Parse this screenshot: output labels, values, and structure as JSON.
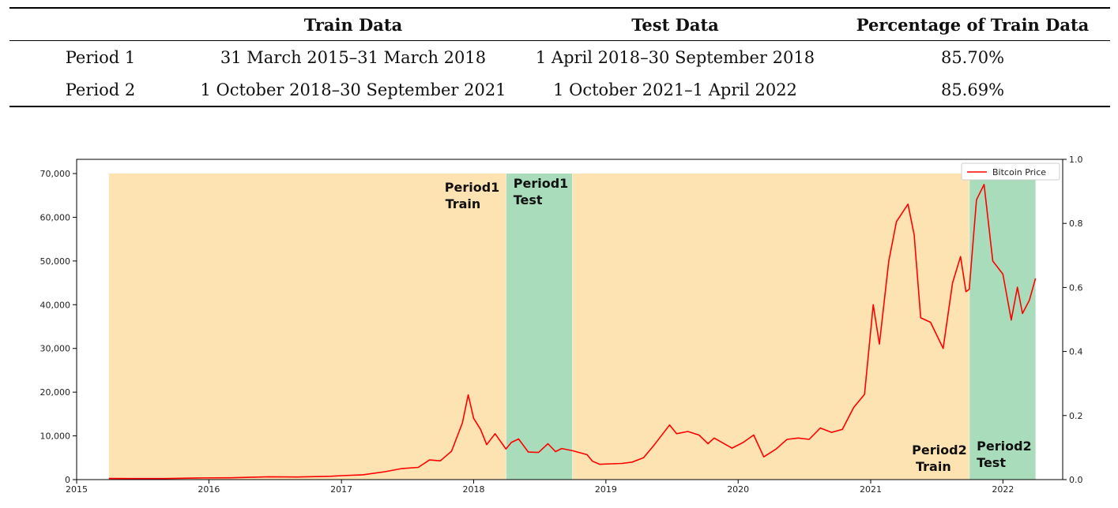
{
  "table": {
    "headers": [
      "",
      "Train Data",
      "Test Data",
      "Percentage of Train Data"
    ],
    "rows": [
      [
        "Period 1",
        "31 March 2015–31 March 2018",
        "1 April 2018–30 September 2018",
        "85.70%"
      ],
      [
        "Period 2",
        "1 October 2018–30 September 2021",
        "1 October 2021–1 April 2022",
        "85.69%"
      ]
    ]
  },
  "chart_data": {
    "type": "line",
    "x_axis": {
      "type": "date",
      "ticks": [
        "2015",
        "2016",
        "2017",
        "2018",
        "2019",
        "2020",
        "2021",
        "2022"
      ],
      "range": [
        "2015-01-01",
        "2022-06-15"
      ]
    },
    "y_axis_left": {
      "ylim": [
        0,
        70000
      ],
      "ticks": [
        "0",
        "10,000",
        "20,000",
        "30,000",
        "40,000",
        "50,000",
        "60,000",
        "70,000"
      ]
    },
    "y_axis_right": {
      "ylim": [
        0,
        1.0
      ],
      "ticks": [
        "0.0",
        "0.2",
        "0.4",
        "0.6",
        "0.8",
        "1.0"
      ]
    },
    "grid": false,
    "legend": {
      "placement": "top-right",
      "entries": [
        {
          "name": "Bitcoin Price",
          "color": "#ff0000"
        }
      ]
    },
    "regions": [
      {
        "line1": "Period1",
        "line2": "Train",
        "start": "2015-03-31",
        "end": "2018-03-31",
        "color": "#fde2b2"
      },
      {
        "line1": "Period1",
        "line2": "Test",
        "start": "2018-04-01",
        "end": "2018-09-30",
        "color": "#a9dcbb"
      },
      {
        "line1": "Period2",
        "line2": "Train",
        "start": "2018-10-01",
        "end": "2021-09-30",
        "color": "#fde2b2"
      },
      {
        "line1": "Period2",
        "line2": "Test",
        "start": "2021-10-01",
        "end": "2022-04-01",
        "color": "#a9dcbb"
      }
    ],
    "series": [
      {
        "name": "Bitcoin Price",
        "color": "#ff0000",
        "x": [
          "2015-03-31",
          "2015-06-01",
          "2015-09-01",
          "2015-12-01",
          "2016-03-01",
          "2016-06-15",
          "2016-09-01",
          "2016-12-01",
          "2017-01-01",
          "2017-03-01",
          "2017-05-01",
          "2017-06-15",
          "2017-08-01",
          "2017-09-01",
          "2017-10-01",
          "2017-11-01",
          "2017-12-01",
          "2017-12-17",
          "2018-01-01",
          "2018-01-20",
          "2018-02-06",
          "2018-03-01",
          "2018-03-31",
          "2018-04-15",
          "2018-05-05",
          "2018-06-01",
          "2018-06-29",
          "2018-07-25",
          "2018-08-15",
          "2018-09-01",
          "2018-10-01",
          "2018-11-10",
          "2018-11-25",
          "2018-12-15",
          "2019-01-15",
          "2019-02-15",
          "2019-03-15",
          "2019-04-15",
          "2019-05-15",
          "2019-06-26",
          "2019-07-15",
          "2019-08-15",
          "2019-09-15",
          "2019-10-10",
          "2019-10-27",
          "2019-12-15",
          "2020-01-15",
          "2020-02-13",
          "2020-03-12",
          "2020-04-15",
          "2020-05-15",
          "2020-06-15",
          "2020-07-15",
          "2020-08-15",
          "2020-09-15",
          "2020-10-15",
          "2020-11-15",
          "2020-12-15",
          "2021-01-08",
          "2021-01-25",
          "2021-02-20",
          "2021-03-13",
          "2021-04-14",
          "2021-05-01",
          "2021-05-19",
          "2021-06-15",
          "2021-07-20",
          "2021-08-15",
          "2021-09-06",
          "2021-09-21",
          "2021-09-30",
          "2021-10-20",
          "2021-11-10",
          "2021-12-04",
          "2022-01-01",
          "2022-01-24",
          "2022-02-10",
          "2022-02-24",
          "2022-03-15",
          "2022-04-01"
        ],
        "y": [
          250,
          240,
          230,
          380,
          420,
          650,
          600,
          750,
          900,
          1100,
          1800,
          2500,
          2800,
          4500,
          4300,
          6500,
          13000,
          19400,
          14000,
          11500,
          8000,
          10500,
          7000,
          8500,
          9300,
          6300,
          6200,
          8200,
          6400,
          7100,
          6600,
          5700,
          4200,
          3500,
          3600,
          3700,
          4000,
          5000,
          8000,
          12500,
          10500,
          11000,
          10200,
          8200,
          9500,
          7200,
          8500,
          10200,
          5200,
          7000,
          9200,
          9500,
          9200,
          11800,
          10800,
          11500,
          16500,
          19500,
          40000,
          31000,
          50000,
          59000,
          63000,
          56000,
          37000,
          36000,
          30000,
          45000,
          51000,
          43000,
          43500,
          64000,
          67500,
          50000,
          47000,
          36500,
          44000,
          38000,
          41000,
          46000
        ]
      }
    ]
  }
}
